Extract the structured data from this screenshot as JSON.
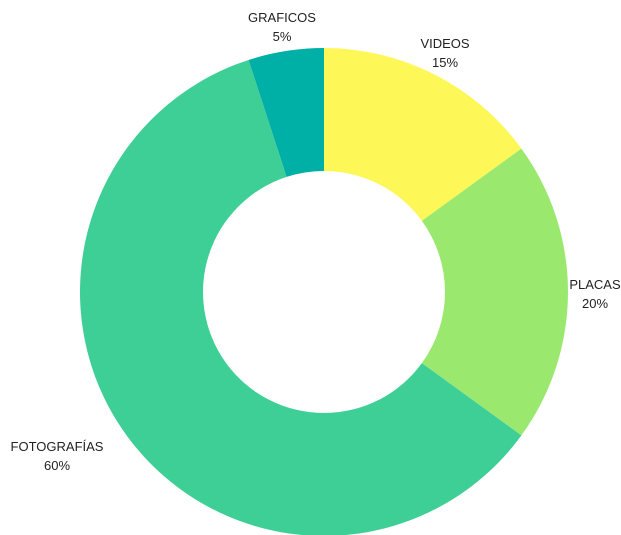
{
  "chart_data": {
    "type": "pie",
    "variant": "donut",
    "title": "",
    "categories": [
      "VIDEOS",
      "PLACAS",
      "FOTOGRAFÍAS",
      "GRAFICOS"
    ],
    "values": [
      15,
      20,
      60,
      5
    ],
    "labels": [
      "15%",
      "20%",
      "60%",
      "5%"
    ],
    "colors": [
      "#FDF757",
      "#9BE86F",
      "#3ECF96",
      "#00AFA6"
    ],
    "start": "top",
    "direction": "clockwise",
    "legend": "none"
  }
}
